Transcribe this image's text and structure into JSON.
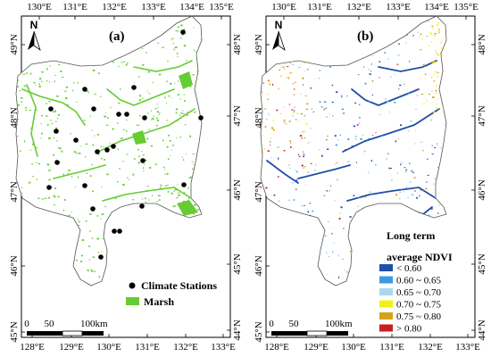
{
  "panels": [
    {
      "label": "(a)",
      "top_ticks": [
        "130°E",
        "131°E",
        "132°E",
        "133°E",
        "134°E",
        "135°E"
      ],
      "bottom_ticks": [
        "128°E",
        "129°E",
        "130°E",
        "131°E",
        "132°E",
        "133°E"
      ],
      "left_ticks": [
        "49°N",
        "48°N",
        "47°N",
        "46°N",
        "45°N"
      ],
      "right_ticks": [
        "48°N",
        "47°N",
        "46°N",
        "45°N",
        "44°N"
      ],
      "north": "N",
      "scale": {
        "labels": [
          "0",
          "50",
          "100km"
        ]
      },
      "legend": [
        {
          "type": "dot",
          "label": "Climate Stations",
          "color": "#000000"
        },
        {
          "type": "patch",
          "label": "Marsh",
          "color": "#66cc33"
        }
      ],
      "stations": [
        [
          205,
          36
        ],
        [
          95,
          100
        ],
        [
          150,
          98
        ],
        [
          57,
          122
        ],
        [
          105,
          122
        ],
        [
          63,
          147
        ],
        [
          85,
          157
        ],
        [
          120,
          168
        ],
        [
          109,
          170
        ],
        [
          127,
          164
        ],
        [
          162,
          132
        ],
        [
          142,
          128
        ],
        [
          133,
          128
        ],
        [
          225,
          132
        ],
        [
          64,
          182
        ],
        [
          160,
          180
        ],
        [
          55,
          210
        ],
        [
          95,
          208
        ],
        [
          206,
          207
        ],
        [
          104,
          234
        ],
        [
          159,
          231
        ],
        [
          128,
          259
        ],
        [
          134,
          259
        ],
        [
          113,
          288
        ]
      ]
    },
    {
      "label": "(b)",
      "top_ticks": [
        "130°E",
        "131°E",
        "132°E",
        "133°E",
        "134°E",
        "135°E"
      ],
      "bottom_ticks": [
        "128°E",
        "129°E",
        "130°E",
        "131°E",
        "132°E",
        "133°E"
      ],
      "left_ticks": [
        "49°N",
        "48°N",
        "47°N",
        "46°N",
        "45°N"
      ],
      "right_ticks": [
        "48°N",
        "47°N",
        "46°N",
        "45°N",
        "44°N"
      ],
      "north": "N",
      "scale": {
        "labels": [
          "0",
          "50",
          "100km"
        ]
      },
      "legend_title": [
        "Long term",
        "average NDVI"
      ],
      "legend": [
        {
          "label": "< 0.60",
          "color": "#1f4fa8"
        },
        {
          "label": "0.60 ~ 0.65",
          "color": "#3d9ae0"
        },
        {
          "label": "0.65 ~ 0.70",
          "color": "#a8d8f0"
        },
        {
          "label": "0.70 ~ 0.75",
          "color": "#f0f018"
        },
        {
          "label": "0.75 ~ 0.80",
          "color": "#d6a218"
        },
        {
          "label": "> 0.80",
          "color": "#c62020"
        }
      ]
    }
  ]
}
